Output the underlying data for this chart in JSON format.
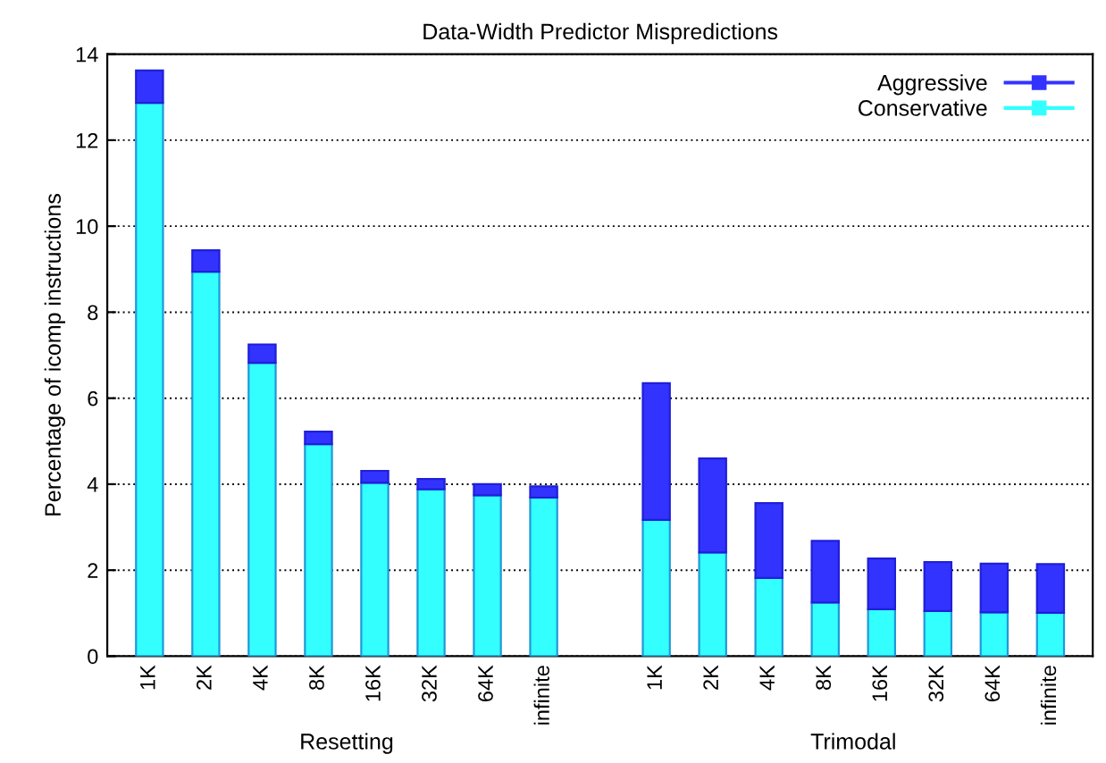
{
  "chart_data": {
    "type": "bar",
    "title": "Data-Width Predictor Mispredictions",
    "ylabel": "Percentage of icomp instructions",
    "categories": [
      "1K",
      "2K",
      "4K",
      "8K",
      "16K",
      "32K",
      "64K",
      "infinite",
      null,
      "1K",
      "2K",
      "4K",
      "8K",
      "16K",
      "32K",
      "64K",
      "infinite"
    ],
    "stacked": true,
    "series": [
      {
        "name": "Conservative",
        "color": "#33ffff",
        "values": [
          12.87,
          8.94,
          6.82,
          4.93,
          4.03,
          3.88,
          3.74,
          3.69,
          null,
          3.17,
          2.41,
          1.82,
          1.25,
          1.09,
          1.05,
          1.02,
          1.01
        ]
      },
      {
        "name": "Aggressive",
        "color": "#3333ff",
        "values": [
          0.75,
          0.5,
          0.43,
          0.29,
          0.28,
          0.24,
          0.26,
          0.26,
          null,
          3.18,
          2.19,
          1.74,
          1.43,
          1.18,
          1.14,
          1.13,
          1.13
        ]
      }
    ],
    "annotations": [
      "Resetting",
      "Trimodal"
    ],
    "ylim": [
      0,
      14
    ],
    "yticks": [
      0,
      2,
      4,
      6,
      8,
      10,
      12,
      14
    ],
    "grid": "y",
    "legend": "top right",
    "marker": "square"
  }
}
